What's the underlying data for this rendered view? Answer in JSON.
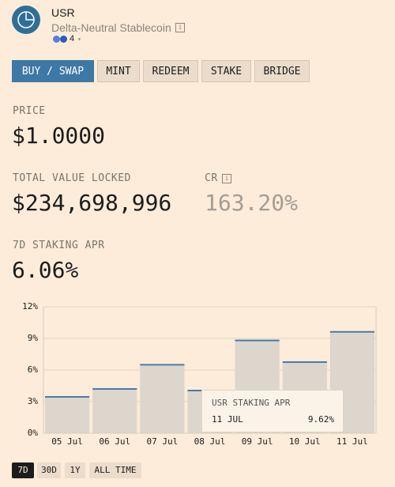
{
  "header": {
    "title": "USR",
    "subtitle": "Delta-Neutral Stablecoin",
    "chain_count": "4"
  },
  "tabs": [
    "BUY / SWAP",
    "MINT",
    "REDEEM",
    "STAKE",
    "BRIDGE"
  ],
  "stats": {
    "price_label": "PRICE",
    "price": "$1.0000",
    "tvl_label": "TOTAL VALUE LOCKED",
    "tvl": "$234,698,996",
    "cr_label": "CR",
    "cr": "163.20%",
    "apr_label": "7D STAKING APR",
    "apr": "6.06%"
  },
  "chart_data": {
    "type": "bar",
    "categories": [
      "05 Jul",
      "06 Jul",
      "07 Jul",
      "08 Jul",
      "09 Jul",
      "10 Jul",
      "11 Jul"
    ],
    "values": [
      3.45,
      4.2,
      6.5,
      4.05,
      8.8,
      6.75,
      9.62
    ],
    "color": "#4a7aa8",
    "ylim": [
      0,
      12
    ],
    "yticks": [
      {
        "value": 0,
        "label": "0%"
      },
      {
        "value": 3,
        "label": "3%"
      },
      {
        "value": 6,
        "label": "6%"
      },
      {
        "value": 9,
        "label": "9%"
      },
      {
        "value": 12,
        "label": "12%"
      }
    ],
    "grid": true
  },
  "tooltip": {
    "title": "USR STAKING APR",
    "date": "11 JUL",
    "value": "9.62%"
  },
  "ranges": [
    "7D",
    "30D",
    "1Y",
    "ALL TIME"
  ]
}
